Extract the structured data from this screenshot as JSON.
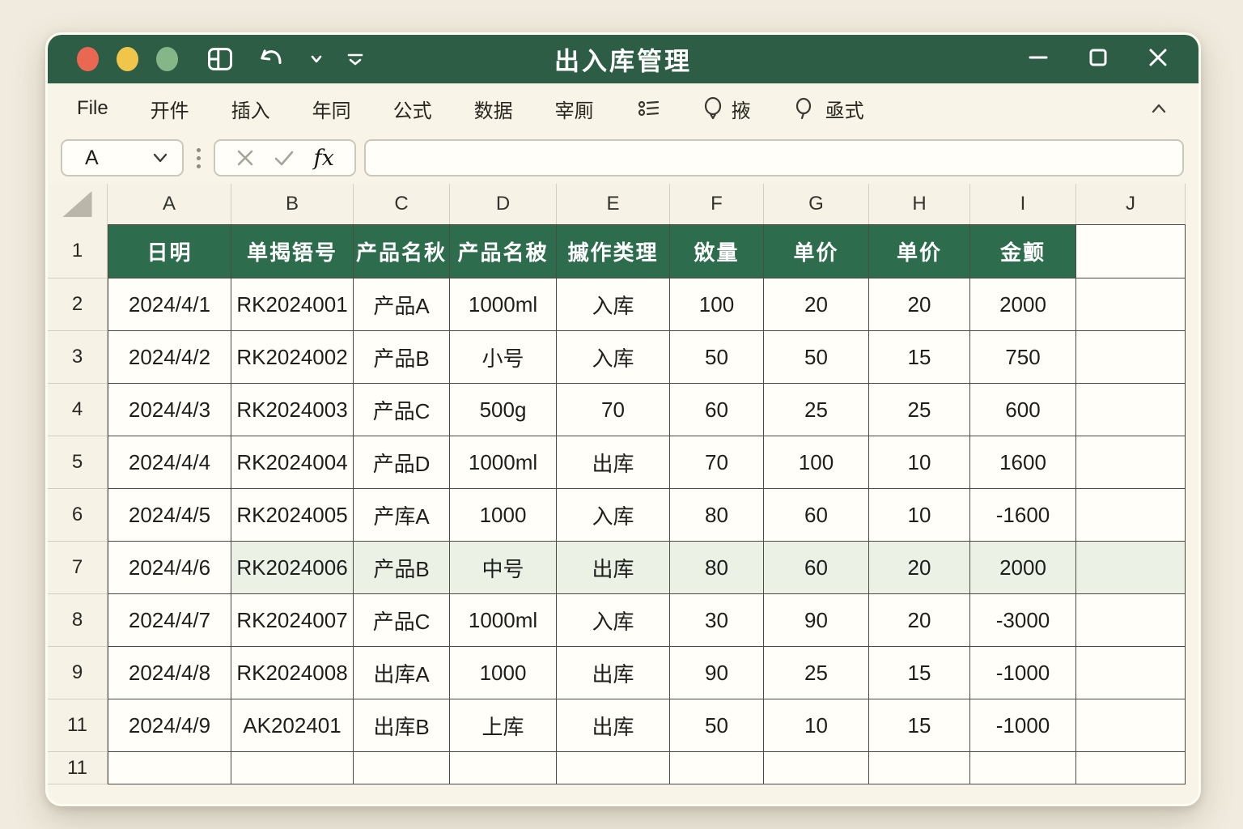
{
  "colors": {
    "titlebar_bg": "#2d5e45",
    "table_header_bg": "#2e6c4e",
    "highlight_row_bg": "#ebf1e5",
    "page_bg": "#f0ebde",
    "window_bg": "#f8f4e7",
    "cell_bg": "#fffef9",
    "grid_line": "#4b4a44",
    "traffic_red": "#ea6852",
    "traffic_yellow": "#f0c64a",
    "traffic_green": "#85b687"
  },
  "icons": {
    "titlebar": [
      "layout-grid-icon",
      "undo-icon",
      "chevron-down-icon",
      "customize-icon"
    ],
    "window_controls": [
      "minimize-icon",
      "maximize-icon",
      "close-icon"
    ],
    "menubar": [
      "list-icon",
      "bulb-icon",
      "search-icon",
      "collapse-ribbon-icon"
    ],
    "formula": [
      "cancel-x-icon",
      "confirm-check-icon",
      "fx-icon",
      "name-box-dropdown-icon"
    ]
  },
  "titlebar": {
    "title": "出入库管理"
  },
  "menubar": {
    "items": [
      "File",
      "开件",
      "插入",
      "年同",
      "公式",
      "数据",
      "宰厠"
    ],
    "bulb_label": "掖",
    "search_label": "亟式"
  },
  "formula_bar": {
    "name_box_value": "A",
    "fx_label": "fx",
    "formula_value": ""
  },
  "sheet": {
    "column_letters": [
      "A",
      "B",
      "C",
      "D",
      "E",
      "F",
      "G",
      "H",
      "I",
      "J"
    ],
    "row_numbers": [
      "1",
      "2",
      "3",
      "4",
      "5",
      "6",
      "7",
      "8",
      "9",
      "11",
      "11"
    ],
    "header_cells": [
      "日明",
      "单揭铻号",
      "产品名秋",
      "产品名秛",
      "摵作类理",
      "敓量",
      "单价",
      "单价",
      "金颤"
    ],
    "rows": [
      {
        "highlight": false,
        "cells": [
          "2024/4/1",
          "RK2024001",
          "产品A",
          "1000ml",
          "入库",
          "100",
          "20",
          "20",
          "2000"
        ]
      },
      {
        "highlight": false,
        "cells": [
          "2024/4/2",
          "RK2024002",
          "产品B",
          "小号",
          "入库",
          "50",
          "50",
          "15",
          "750"
        ]
      },
      {
        "highlight": false,
        "cells": [
          "2024/4/3",
          "RK2024003",
          "产品C",
          "500g",
          "70",
          "60",
          "25",
          "25",
          "600"
        ]
      },
      {
        "highlight": false,
        "cells": [
          "2024/4/4",
          "RK2024004",
          "产品D",
          "1000ml",
          "出库",
          "70",
          "100",
          "10",
          "1600"
        ]
      },
      {
        "highlight": false,
        "cells": [
          "2024/4/5",
          "RK2024005",
          "产库A",
          "1000",
          "入库",
          "80",
          "60",
          "10",
          "-1600"
        ]
      },
      {
        "highlight": true,
        "cells": [
          "2024/4/6",
          "RK2024006",
          "产品B",
          "中号",
          "出库",
          "80",
          "60",
          "20",
          "2000"
        ]
      },
      {
        "highlight": false,
        "cells": [
          "2024/4/7",
          "RK2024007",
          "产品C",
          "1000ml",
          "入库",
          "30",
          "90",
          "20",
          "-3000"
        ]
      },
      {
        "highlight": false,
        "cells": [
          "2024/4/8",
          "RK2024008",
          "出库A",
          "1000",
          "出库",
          "90",
          "25",
          "15",
          "-1000"
        ]
      },
      {
        "highlight": false,
        "cells": [
          "2024/4/9",
          "AK202401",
          "出库B",
          "上库",
          "出库",
          "50",
          "10",
          "15",
          "-1000"
        ]
      }
    ]
  }
}
